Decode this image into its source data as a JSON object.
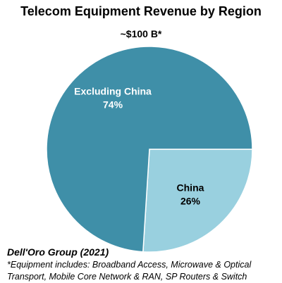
{
  "chart_data": {
    "type": "pie",
    "title": "Telecom Equipment Revenue by Region",
    "subtitle": "~$100 B*",
    "slices": [
      {
        "label": "Excluding China",
        "value": 74,
        "value_label": "74%",
        "color": "#3f8fa8",
        "label_color": "#ffffff"
      },
      {
        "label": "China",
        "value": 26,
        "value_label": "26%",
        "color": "#99d0df",
        "label_color": "#000000"
      }
    ]
  },
  "source": "Dell'Oro Group (2021)",
  "footnote_line1": "*Equipment includes: Broadband Access, Microwave & Optical",
  "footnote_line2": "Transport, Mobile Core Network & RAN, SP Routers & Switch"
}
